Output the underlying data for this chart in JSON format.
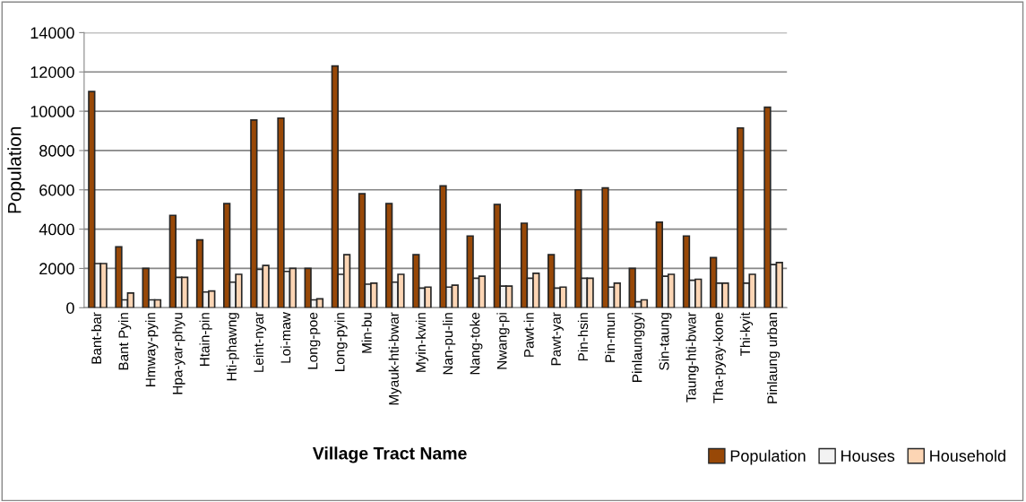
{
  "chart_data": {
    "type": "bar",
    "xlabel": "Village Tract Name",
    "ylabel": "Population",
    "categories": [
      "Bant-bar",
      "Bant Pyin",
      "Hmway-pyin",
      "Hpa-yar-phyu",
      "Htain-pin",
      "Hti-phawng",
      "Leint-nyar",
      "Loi-maw",
      "Long-poe",
      "Long-pyin",
      "Min-bu",
      "Myauk-hti-bwar",
      "Myin-kwin",
      "Nan-pu-lin",
      "Nang-toke",
      "Nwang-pi",
      "Pawt-in",
      "Pawt-yar",
      "Pin-hsin",
      "Pin-mun",
      "Pinlaunggyi",
      "Sin-taung",
      "Taung-hti-bwar",
      "Tha-pyay-kone",
      "Thi-kyit",
      "Pinlaung urban"
    ],
    "series": [
      {
        "name": "Population",
        "color": "#984807",
        "values": [
          11000,
          3100,
          2000,
          4700,
          3450,
          5300,
          9550,
          9650,
          2000,
          12300,
          5800,
          5300,
          2700,
          6200,
          3650,
          5250,
          4300,
          2700,
          6000,
          6100,
          2000,
          4350,
          3650,
          2550,
          9150,
          10200
        ]
      },
      {
        "name": "Houses",
        "color": "#f2f2f2",
        "values": [
          2250,
          400,
          400,
          1550,
          800,
          1300,
          1950,
          1850,
          400,
          1700,
          1200,
          1300,
          1000,
          1050,
          1500,
          1100,
          1500,
          1000,
          1500,
          1050,
          300,
          1600,
          1400,
          1250,
          1250,
          2200
        ]
      },
      {
        "name": "Household",
        "color": "#fcd5b4",
        "values": [
          2250,
          750,
          400,
          1550,
          850,
          1700,
          2150,
          2000,
          450,
          2700,
          1250,
          1700,
          1050,
          1150,
          1600,
          1100,
          1750,
          1050,
          1500,
          1250,
          400,
          1700,
          1450,
          1250,
          1700,
          2300
        ]
      }
    ],
    "ylim": [
      0,
      14000
    ],
    "yticks": [
      0,
      2000,
      4000,
      6000,
      8000,
      10000,
      12000,
      14000
    ],
    "grid": "y",
    "legend": "bottom right"
  }
}
